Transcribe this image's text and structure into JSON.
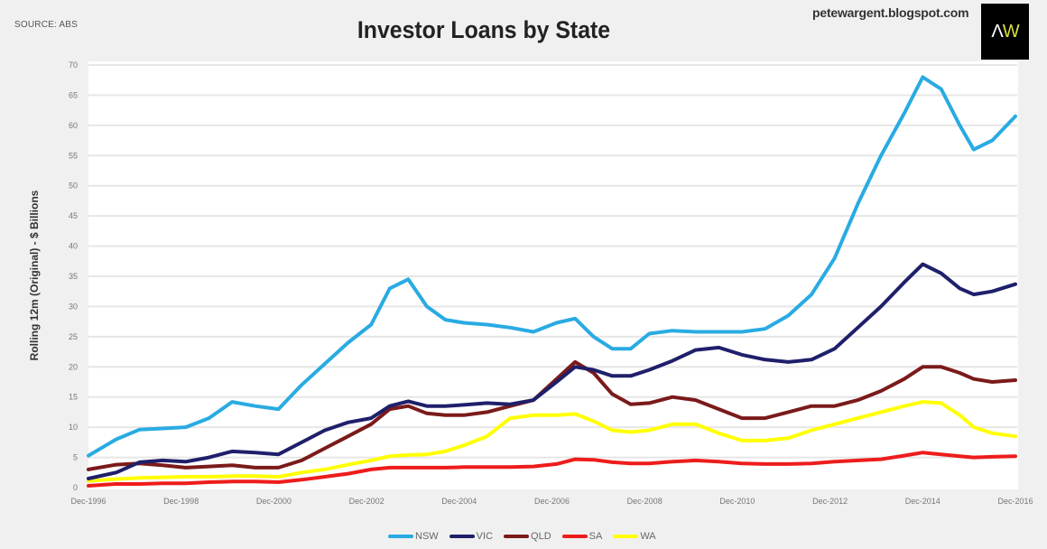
{
  "header": {
    "source": "SOURCE: ABS",
    "title": "Investor Loans by State",
    "blog": "petewargent.blogspot.com",
    "logo_left": "Λ",
    "logo_right": "W"
  },
  "chart_data": {
    "type": "line",
    "title": "Investor Loans by State",
    "xlabel": "",
    "ylabel": "Rolling 12m (Original) - $ Billions",
    "ylim": [
      0,
      70
    ],
    "yticks": [
      0,
      5,
      10,
      15,
      20,
      25,
      30,
      35,
      40,
      45,
      50,
      55,
      60,
      65,
      70
    ],
    "xticks": [
      "Dec-1996",
      "Dec-1998",
      "Dec-2000",
      "Dec-2002",
      "Dec-2004",
      "Dec-2006",
      "Dec-2008",
      "Dec-2010",
      "Dec-2012",
      "Dec-2014",
      "Dec-2016"
    ],
    "grid": true,
    "legend_position": "bottom",
    "x": [
      1996.9,
      1997.5,
      1998.0,
      1998.5,
      1999.0,
      1999.5,
      2000.0,
      2000.5,
      2001.0,
      2001.5,
      2002.0,
      2002.5,
      2003.0,
      2003.4,
      2003.8,
      2004.2,
      2004.6,
      2005.0,
      2005.5,
      2006.0,
      2006.5,
      2007.0,
      2007.4,
      2007.8,
      2008.2,
      2008.6,
      2009.0,
      2009.5,
      2010.0,
      2010.5,
      2011.0,
      2011.5,
      2012.0,
      2012.5,
      2013.0,
      2013.5,
      2014.0,
      2014.5,
      2014.9,
      2015.3,
      2015.7,
      2016.0,
      2016.4,
      2016.9
    ],
    "series": [
      {
        "name": "NSW",
        "color": "#29abe2",
        "values": [
          5.3,
          8.0,
          9.6,
          9.8,
          10.0,
          11.5,
          14.2,
          13.5,
          13.0,
          17.0,
          20.5,
          24.0,
          27.0,
          33.0,
          34.5,
          30.0,
          27.8,
          27.3,
          27.0,
          26.5,
          25.8,
          27.3,
          28.0,
          25.0,
          23.0,
          23.0,
          25.5,
          26.0,
          25.8,
          25.8,
          25.8,
          26.3,
          28.5,
          32.0,
          38.0,
          47.0,
          55.0,
          62.0,
          68.0,
          66.0,
          60.0,
          56.0,
          57.5,
          61.5
        ]
      },
      {
        "name": "VIC",
        "color": "#1f1f6b",
        "values": [
          1.5,
          2.5,
          4.2,
          4.5,
          4.3,
          5.0,
          6.0,
          5.8,
          5.5,
          7.5,
          9.5,
          10.8,
          11.5,
          13.5,
          14.3,
          13.5,
          13.5,
          13.7,
          14.0,
          13.8,
          14.5,
          17.5,
          20.0,
          19.5,
          18.5,
          18.5,
          19.5,
          21.0,
          22.8,
          23.2,
          22.0,
          21.2,
          20.8,
          21.2,
          23.0,
          26.5,
          30.0,
          34.0,
          37.0,
          35.5,
          33.0,
          32.0,
          32.5,
          33.7
        ]
      },
      {
        "name": "QLD",
        "color": "#7b1a1a",
        "values": [
          3.0,
          3.8,
          4.0,
          3.7,
          3.3,
          3.5,
          3.7,
          3.3,
          3.3,
          4.5,
          6.5,
          8.5,
          10.5,
          13.0,
          13.5,
          12.3,
          12.0,
          12.0,
          12.5,
          13.5,
          14.5,
          18.0,
          20.8,
          19.0,
          15.5,
          13.8,
          14.0,
          15.0,
          14.5,
          13.0,
          11.5,
          11.5,
          12.5,
          13.5,
          13.5,
          14.5,
          16.0,
          18.0,
          20.0,
          20.0,
          19.0,
          18.0,
          17.5,
          17.8
        ]
      },
      {
        "name": "SA",
        "color": "#ee1c1c",
        "values": [
          0.3,
          0.6,
          0.6,
          0.7,
          0.7,
          0.9,
          1.0,
          1.0,
          0.9,
          1.3,
          1.8,
          2.3,
          3.0,
          3.3,
          3.3,
          3.3,
          3.3,
          3.4,
          3.4,
          3.4,
          3.5,
          3.9,
          4.7,
          4.6,
          4.2,
          4.0,
          4.0,
          4.3,
          4.5,
          4.3,
          4.0,
          3.9,
          3.9,
          4.0,
          4.3,
          4.5,
          4.7,
          5.3,
          5.8,
          5.5,
          5.2,
          5.0,
          5.1,
          5.2
        ]
      },
      {
        "name": "WA",
        "color": "#ffff00",
        "values": [
          1.1,
          1.4,
          1.6,
          1.7,
          1.8,
          1.8,
          1.9,
          1.9,
          1.8,
          2.5,
          3.0,
          3.8,
          4.5,
          5.2,
          5.4,
          5.5,
          6.0,
          7.0,
          8.5,
          11.5,
          12.0,
          12.0,
          12.2,
          11.0,
          9.5,
          9.2,
          9.5,
          10.5,
          10.5,
          9.0,
          7.8,
          7.8,
          8.2,
          9.5,
          10.5,
          11.5,
          12.5,
          13.5,
          14.2,
          14.0,
          12.0,
          10.0,
          9.0,
          8.5
        ]
      }
    ]
  },
  "legend": {
    "items": [
      {
        "label": "NSW",
        "color": "#29abe2"
      },
      {
        "label": "VIC",
        "color": "#1f1f6b"
      },
      {
        "label": "QLD",
        "color": "#7b1a1a"
      },
      {
        "label": "SA",
        "color": "#ee1c1c"
      },
      {
        "label": "WA",
        "color": "#ffff00"
      }
    ]
  }
}
